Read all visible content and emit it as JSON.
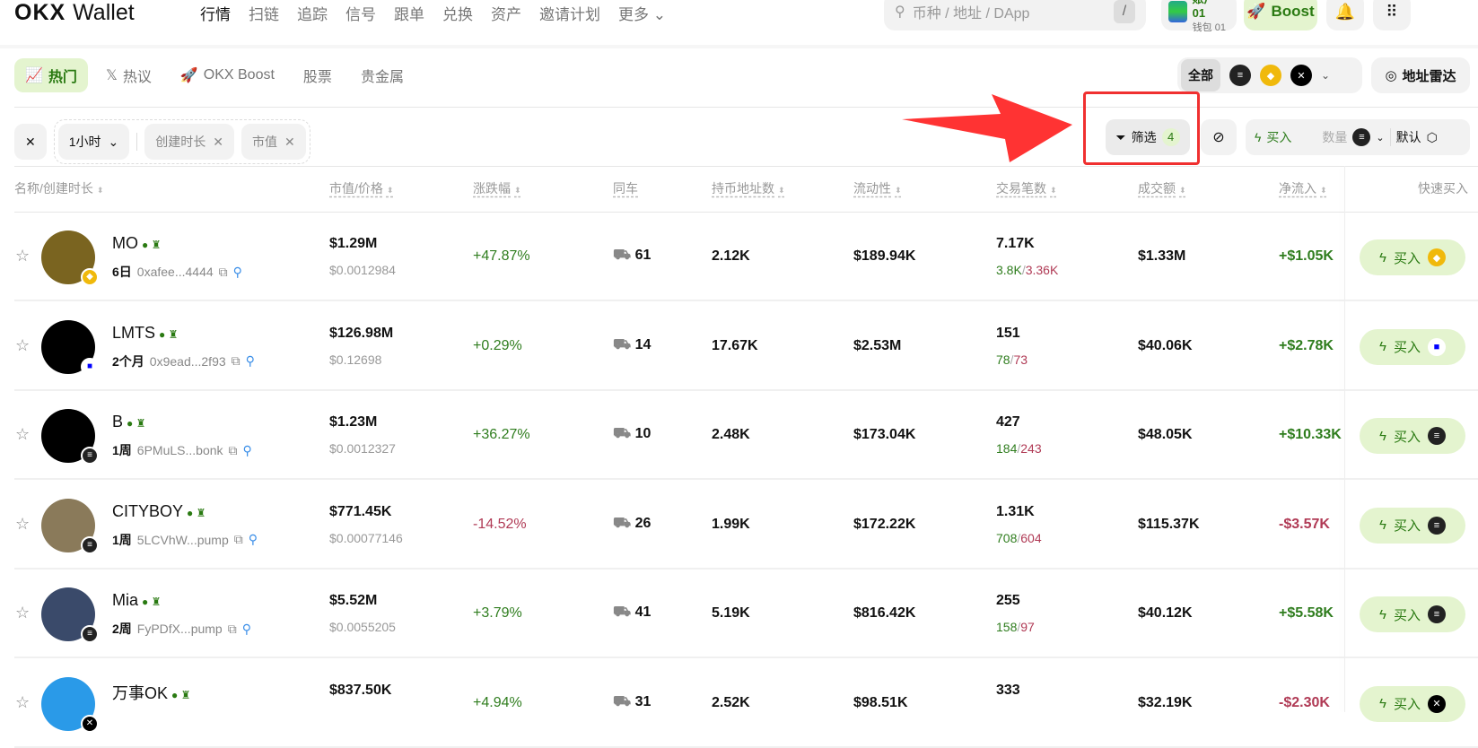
{
  "header": {
    "logo": "OKX",
    "logo_suffix": "Wallet",
    "nav": [
      "行情",
      "扫链",
      "追踪",
      "信号",
      "跟单",
      "兑换",
      "资产",
      "邀请计划",
      "更多"
    ],
    "search_placeholder": "币种 / 地址 / DApp",
    "search_shortcut": "/",
    "account_name": "账户 01",
    "wallet_name": "钱包 01",
    "boost_label": "Boost"
  },
  "tabs": [
    "热门",
    "热议",
    "OKX Boost",
    "股票",
    "贵金属"
  ],
  "chains": {
    "all_label": "全部",
    "items": [
      "solana",
      "bnb",
      "okx-xlayer"
    ]
  },
  "radar_label": "地址雷达",
  "filters": {
    "timeframe": "1小时",
    "chips": [
      "创建时长",
      "市值"
    ],
    "filter_label": "筛选",
    "filter_count": "4",
    "buy_label": "买入",
    "amount_placeholder": "数量",
    "preset": "默认"
  },
  "columns": [
    "名称/创建时长",
    "市值/价格",
    "涨跌幅",
    "同车",
    "持币地址数",
    "流动性",
    "交易笔数",
    "成交额",
    "净流入",
    "快速买入"
  ],
  "colors": {
    "accent": "#2a7a12",
    "accent_bg": "#e4f4cf",
    "positive": "#2f7d1e",
    "negative": "#b03a55",
    "annotation": "#f03030"
  },
  "rows": [
    {
      "name": "MO",
      "age": "6日",
      "address": "0xafee...4444",
      "mcap": "$1.29M",
      "price": "$0.0012984",
      "change": "+47.87%",
      "dir": "g",
      "same": "61",
      "holders": "2.12K",
      "liquidity": "$189.94K",
      "txs": "7.17K",
      "buys": "3.8K",
      "sells": "3.36K",
      "volume": "$1.33M",
      "netflow": "+$1.05K",
      "nf": "g",
      "chain": "bnb",
      "avatar": "#7a6420"
    },
    {
      "name": "LMTS",
      "age": "2个月",
      "address": "0x9ead...2f93",
      "mcap": "$126.98M",
      "price": "$0.12698",
      "change": "+0.29%",
      "dir": "g",
      "same": "14",
      "holders": "17.67K",
      "liquidity": "$2.53M",
      "txs": "151",
      "buys": "78",
      "sells": "73",
      "volume": "$40.06K",
      "netflow": "+$2.78K",
      "nf": "g",
      "chain": "base",
      "avatar": "#000"
    },
    {
      "name": "B",
      "age": "1周",
      "address": "6PMuLS...bonk",
      "mcap": "$1.23M",
      "price": "$0.0012327",
      "change": "+36.27%",
      "dir": "g",
      "same": "10",
      "holders": "2.48K",
      "liquidity": "$173.04K",
      "txs": "427",
      "buys": "184",
      "sells": "243",
      "volume": "$48.05K",
      "netflow": "+$10.33K",
      "nf": "g",
      "chain": "solana",
      "avatar": "#000"
    },
    {
      "name": "CITYBOY",
      "age": "1周",
      "address": "5LCVhW...pump",
      "mcap": "$771.45K",
      "price": "$0.00077146",
      "change": "-14.52%",
      "dir": "r",
      "same": "26",
      "holders": "1.99K",
      "liquidity": "$172.22K",
      "txs": "1.31K",
      "buys": "708",
      "sells": "604",
      "volume": "$115.37K",
      "netflow": "-$3.57K",
      "nf": "r",
      "chain": "solana",
      "avatar": "#8a7a5a"
    },
    {
      "name": "Mia",
      "age": "2周",
      "address": "FyPDfX...pump",
      "mcap": "$5.52M",
      "price": "$0.0055205",
      "change": "+3.79%",
      "dir": "g",
      "same": "41",
      "holders": "5.19K",
      "liquidity": "$816.42K",
      "txs": "255",
      "buys": "158",
      "sells": "97",
      "volume": "$40.12K",
      "netflow": "+$5.58K",
      "nf": "g",
      "chain": "solana",
      "avatar": "#3a4a6a"
    },
    {
      "name": "万事OK",
      "age": "",
      "address": "",
      "mcap": "$837.50K",
      "price": "",
      "change": "+4.94%",
      "dir": "g",
      "same": "31",
      "holders": "2.52K",
      "liquidity": "$98.51K",
      "txs": "333",
      "buys": "",
      "sells": "",
      "volume": "$32.19K",
      "netflow": "-$2.30K",
      "nf": "r",
      "chain": "okx-xlayer",
      "avatar": "#2a9ae8"
    }
  ]
}
